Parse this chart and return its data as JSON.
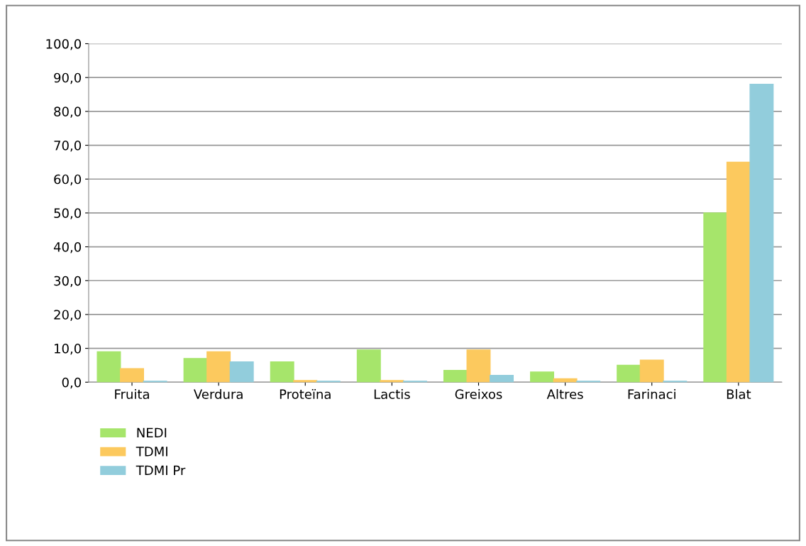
{
  "chart_data": {
    "type": "bar",
    "categories": [
      "Fruita",
      "Verdura",
      "Proteïna",
      "Lactis",
      "Greixos",
      "Altres",
      "Farinaci",
      "Blat"
    ],
    "series": [
      {
        "name": "NEDI",
        "color": "#a6e56b",
        "values": [
          9,
          7,
          6,
          9.5,
          3.5,
          3,
          5,
          50
        ]
      },
      {
        "name": "TDMI",
        "color": "#fcc95e",
        "values": [
          4,
          9,
          0.5,
          0.5,
          9.5,
          1,
          6.5,
          65
        ]
      },
      {
        "name": "TDMI Pr",
        "color": "#92cddc",
        "values": [
          0.3,
          6,
          0.3,
          0.3,
          2,
          0.3,
          0.3,
          88
        ]
      }
    ],
    "ylim": [
      0,
      100
    ],
    "yticks": [
      {
        "value": 0,
        "label": "0,0"
      },
      {
        "value": 10,
        "label": "10,0"
      },
      {
        "value": 20,
        "label": "20,0"
      },
      {
        "value": 30,
        "label": "30,0"
      },
      {
        "value": 40,
        "label": "40,0"
      },
      {
        "value": 50,
        "label": "50,0"
      },
      {
        "value": 60,
        "label": "60,0"
      },
      {
        "value": 70,
        "label": "70,0"
      },
      {
        "value": 80,
        "label": "80,0"
      },
      {
        "value": 90,
        "label": "90,0"
      },
      {
        "value": 100,
        "label": "100,0"
      }
    ],
    "grid": "y",
    "legend": "bottom left"
  }
}
